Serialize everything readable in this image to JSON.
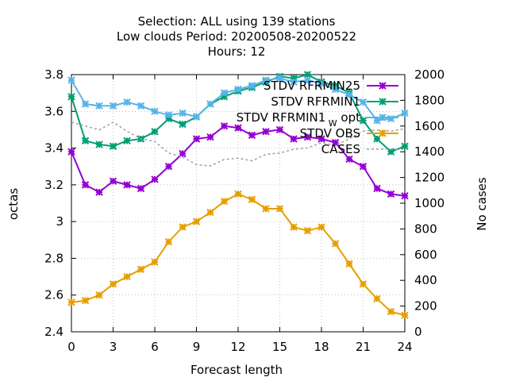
{
  "chart_data": {
    "type": "line",
    "title_lines": [
      "Selection: ALL using   139 stations",
      "Low clouds   Period: 20200508-20200522",
      "Hours:  12"
    ],
    "xlabel": "Forecast length",
    "ylabel": "octas",
    "y2label": "No cases",
    "xlim": [
      0,
      24
    ],
    "ylim": [
      2.4,
      3.8
    ],
    "y2lim": [
      0,
      2000
    ],
    "x_ticks": [
      "0",
      "3",
      "6",
      "9",
      "12",
      "15",
      "18",
      "21",
      "24"
    ],
    "y_ticks": [
      "2.4",
      "2.6",
      "2.8",
      "3",
      "3.2",
      "3.4",
      "3.6",
      "3.8"
    ],
    "y2_ticks": [
      "0",
      "200",
      "400",
      "600",
      "800",
      "1000",
      "1200",
      "1400",
      "1600",
      "1800",
      "2000"
    ],
    "grid": true,
    "legend_position": "top-right",
    "x": [
      0,
      1,
      2,
      3,
      4,
      5,
      6,
      7,
      8,
      9,
      10,
      11,
      12,
      13,
      14,
      15,
      16,
      17,
      18,
      19,
      20,
      21,
      22,
      23,
      24
    ],
    "series": [
      {
        "name": "STDV RFRMIN25",
        "legend_extra": "",
        "color": "#9400d3",
        "axis": "y",
        "marker": true,
        "dashed": false,
        "values": [
          3.38,
          3.2,
          3.16,
          3.22,
          3.2,
          3.18,
          3.23,
          3.3,
          3.37,
          3.45,
          3.46,
          3.52,
          3.51,
          3.47,
          3.49,
          3.5,
          3.45,
          3.46,
          3.45,
          3.43,
          3.34,
          3.3,
          3.18,
          3.15,
          3.14
        ]
      },
      {
        "name": "STDV RFRMIN1",
        "legend_extra": "",
        "color": "#009e73",
        "axis": "y",
        "marker": true,
        "dashed": false,
        "values": [
          3.68,
          3.44,
          3.42,
          3.41,
          3.44,
          3.45,
          3.49,
          3.56,
          3.53,
          3.57,
          3.64,
          3.68,
          3.71,
          3.73,
          3.76,
          3.79,
          3.78,
          3.8,
          3.76,
          3.74,
          3.7,
          3.55,
          3.45,
          3.38,
          3.41
        ]
      },
      {
        "name": "STDV RFRMIN1",
        "legend_extra": "W",
        "legend_suffix": "opt",
        "color": "#56b4e9",
        "axis": "y",
        "marker": true,
        "dashed": false,
        "values": [
          3.77,
          3.64,
          3.63,
          3.63,
          3.65,
          3.63,
          3.6,
          3.58,
          3.59,
          3.57,
          3.64,
          3.7,
          3.72,
          3.74,
          3.77,
          3.78,
          3.76,
          3.77,
          3.75,
          3.72,
          3.69,
          3.65,
          3.55,
          3.56,
          3.59
        ]
      },
      {
        "name": "STDV OBS",
        "legend_extra": "",
        "color": "#e69f00",
        "axis": "y",
        "marker": true,
        "dashed": false,
        "values": [
          2.56,
          2.57,
          2.6,
          2.66,
          2.7,
          2.74,
          2.78,
          2.89,
          2.97,
          3.0,
          3.05,
          3.11,
          3.15,
          3.12,
          3.07,
          3.07,
          2.97,
          2.95,
          2.97,
          2.88,
          2.77,
          2.66,
          2.58,
          2.51,
          2.49
        ]
      },
      {
        "name": "CASES",
        "legend_extra": "",
        "color": "#a0a0a0",
        "axis": "y2",
        "marker": false,
        "dashed": true,
        "values": [
          1630,
          1600,
          1570,
          1630,
          1560,
          1500,
          1480,
          1390,
          1360,
          1300,
          1290,
          1340,
          1350,
          1330,
          1380,
          1390,
          1420,
          1430,
          1470,
          1450,
          1500,
          1560,
          1570,
          1560,
          1580
        ]
      }
    ]
  }
}
